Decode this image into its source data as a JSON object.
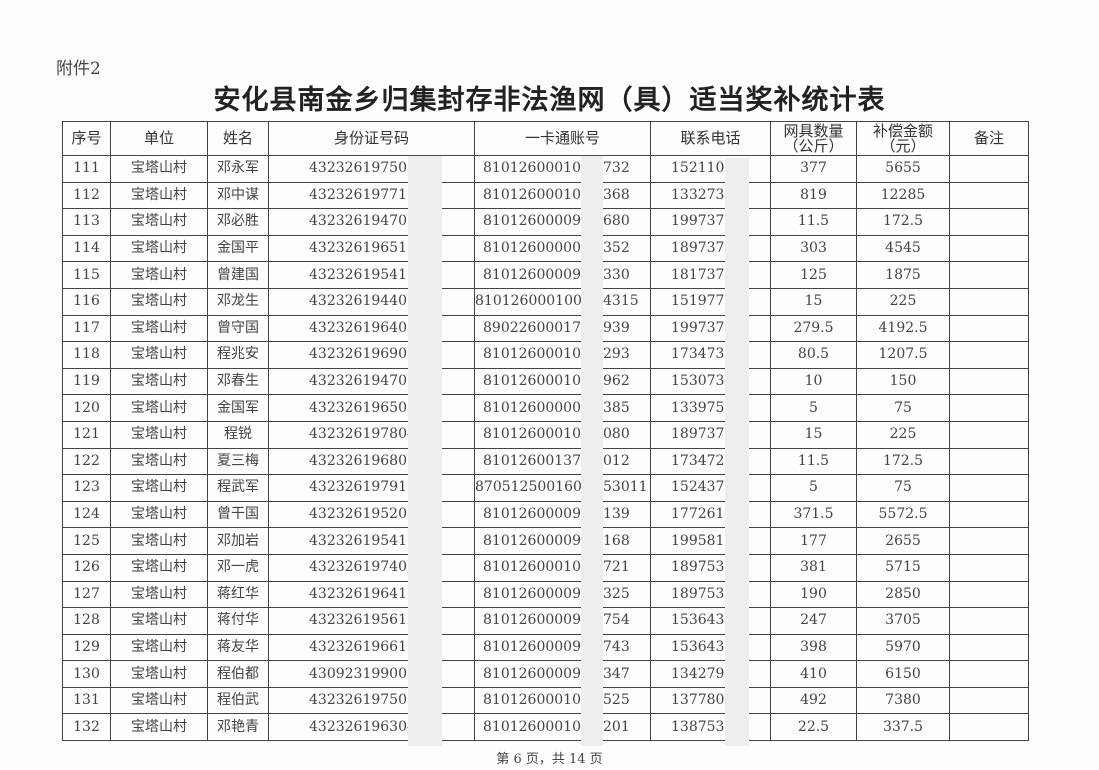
{
  "attachment_label": "附件2",
  "title": "安化县南金乡归集封存非法渔网（具）适当奖补统计表",
  "columns": [
    "序号",
    "单位",
    "姓名",
    "身份证号码",
    "一卡通账号",
    "联系电话",
    "网具数量\n（公斤）",
    "补偿金额\n（元）",
    "备注"
  ],
  "rows": [
    {
      "no": "111",
      "unit": "宝塔山村",
      "name": "邓永军",
      "id": "4323261975050",
      "card": "81012600010",
      "card_tail": "732",
      "phone": "1521104",
      "qty": "377",
      "amount": "5655",
      "note": ""
    },
    {
      "no": "112",
      "unit": "宝塔山村",
      "name": "邓中谋",
      "id": "4323261977110",
      "card": "81012600010",
      "card_tail": "368",
      "phone": "1332737",
      "qty": "819",
      "amount": "12285",
      "note": ""
    },
    {
      "no": "113",
      "unit": "宝塔山村",
      "name": "邓必胜",
      "id": "4323261947081",
      "card": "81012600009",
      "card_tail": "680",
      "phone": "1997375",
      "qty": "11.5",
      "amount": "172.5",
      "note": ""
    },
    {
      "no": "114",
      "unit": "宝塔山村",
      "name": "金国平",
      "id": "4323261965103",
      "card": "81012600000",
      "card_tail": "352",
      "phone": "1897373",
      "qty": "303",
      "amount": "4545",
      "note": ""
    },
    {
      "no": "115",
      "unit": "宝塔山村",
      "name": "曾建国",
      "id": "4323261954112",
      "card": "81012600009",
      "card_tail": "330",
      "phone": "1817370",
      "qty": "125",
      "amount": "1875",
      "note": ""
    },
    {
      "no": "116",
      "unit": "宝塔山村",
      "name": "邓龙生",
      "id": "4323261944061",
      "card": "810126000100",
      "card_tail": "4315",
      "phone": "1519776",
      "qty": "15",
      "amount": "225",
      "note": ""
    },
    {
      "no": "117",
      "unit": "宝塔山村",
      "name": "曾守国",
      "id": "4323261964030",
      "card": "89022600017",
      "card_tail": "939",
      "phone": "1997374",
      "qty": "279.5",
      "amount": "4192.5",
      "note": ""
    },
    {
      "no": "118",
      "unit": "宝塔山村",
      "name": "程兆安",
      "id": "4323261969091",
      "card": "81012600010",
      "card_tail": "293",
      "phone": "1734737",
      "qty": "80.5",
      "amount": "1207.5",
      "note": ""
    },
    {
      "no": "119",
      "unit": "宝塔山村",
      "name": "邓春生",
      "id": "4323261947060",
      "card": "81012600010",
      "card_tail": "962",
      "phone": "1530737",
      "qty": "10",
      "amount": "150",
      "note": ""
    },
    {
      "no": "120",
      "unit": "宝塔山村",
      "name": "金国军",
      "id": "4323261965050",
      "card": "81012600000",
      "card_tail": "385",
      "phone": "1339757",
      "qty": "5",
      "amount": "75",
      "note": ""
    },
    {
      "no": "121",
      "unit": "宝塔山村",
      "name": "程锐",
      "id": "4323261978042",
      "card": "81012600010",
      "card_tail": "080",
      "phone": "1897374",
      "qty": "15",
      "amount": "225",
      "note": ""
    },
    {
      "no": "122",
      "unit": "宝塔山村",
      "name": "夏三梅",
      "id": "4323261968010",
      "card": "81012600137",
      "card_tail": "012",
      "phone": "1734729",
      "qty": "11.5",
      "amount": "172.5",
      "note": ""
    },
    {
      "no": "123",
      "unit": "宝塔山村",
      "name": "程武军",
      "id": "4323261979101",
      "card": "8705125001602",
      "card_tail": "53011",
      "phone": "1524376",
      "qty": "5",
      "amount": "75",
      "note": ""
    },
    {
      "no": "124",
      "unit": "宝塔山村",
      "name": "曾干国",
      "id": "4323261952021",
      "card": "81012600009",
      "card_tail": "139",
      "phone": "1772618",
      "qty": "371.5",
      "amount": "5572.5",
      "note": ""
    },
    {
      "no": "125",
      "unit": "宝塔山村",
      "name": "邓加岩",
      "id": "4323261954111",
      "card": "81012600009",
      "card_tail": "168",
      "phone": "1995813",
      "qty": "177",
      "amount": "2655",
      "note": ""
    },
    {
      "no": "126",
      "unit": "宝塔山村",
      "name": "邓一虎",
      "id": "4323261974010",
      "card": "81012600010",
      "card_tail": "721",
      "phone": "1897538",
      "qty": "381",
      "amount": "5715",
      "note": ""
    },
    {
      "no": "127",
      "unit": "宝塔山村",
      "name": "蒋红华",
      "id": "4323261964121",
      "card": "81012600009",
      "card_tail": "325",
      "phone": "1897536",
      "qty": "190",
      "amount": "2850",
      "note": ""
    },
    {
      "no": "128",
      "unit": "宝塔山村",
      "name": "蒋付华",
      "id": "4323261956121",
      "card": "81012600009",
      "card_tail": "754",
      "phone": "1536431",
      "qty": "247",
      "amount": "3705",
      "note": ""
    },
    {
      "no": "129",
      "unit": "宝塔山村",
      "name": "蒋友华",
      "id": "4323261966110",
      "card": "81012600009",
      "card_tail": "743",
      "phone": "1536432",
      "qty": "398",
      "amount": "5970",
      "note": ""
    },
    {
      "no": "130",
      "unit": "宝塔山村",
      "name": "程伯都",
      "id": "4309231990010",
      "card": "81012600009",
      "card_tail": "347",
      "phone": "1342797",
      "qty": "410",
      "amount": "6150",
      "note": ""
    },
    {
      "no": "131",
      "unit": "宝塔山村",
      "name": "程伯武",
      "id": "4323261975051",
      "card": "81012600010",
      "card_tail": "525",
      "phone": "1377807",
      "qty": "492",
      "amount": "7380",
      "note": ""
    },
    {
      "no": "132",
      "unit": "宝塔山村",
      "name": "邓艳青",
      "id": "4323261963040",
      "card": "81012600010",
      "card_tail": "201",
      "phone": "1387531",
      "qty": "22.5",
      "amount": "337.5",
      "note": ""
    }
  ],
  "footer": "第 6 页，共 14 页"
}
